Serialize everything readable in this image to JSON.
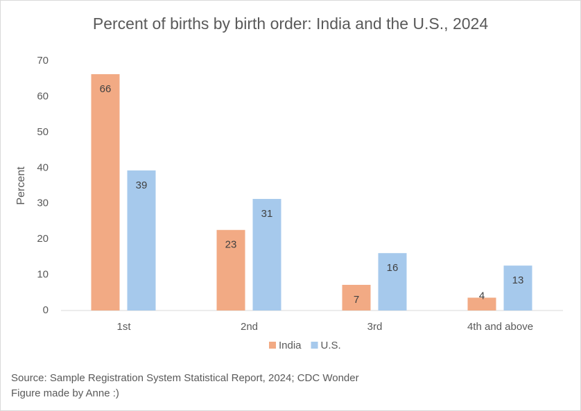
{
  "chart_data": {
    "type": "bar",
    "title": "Percent of births by birth order: India and the U.S., 2024",
    "y_label": "Percent",
    "categories": [
      "1st",
      "2nd",
      "3rd",
      "4th and above"
    ],
    "series": [
      {
        "name": "India",
        "color": "#f2aa84",
        "values": [
          66.3,
          22.6,
          7.2,
          3.6
        ],
        "value_labels": [
          "66",
          "23",
          "7",
          "4"
        ]
      },
      {
        "name": "U.S.",
        "color": "#a6c9ec",
        "values": [
          39.3,
          31.3,
          16.1,
          12.6
        ],
        "value_labels": [
          "39",
          "31",
          "16",
          "13"
        ]
      }
    ],
    "ylim": [
      0,
      70
    ],
    "yticks": [
      0,
      10,
      20,
      30,
      40,
      50,
      60,
      70
    ],
    "grid": false,
    "legend": "bottom",
    "source": "Source: Sample Registration System Statistical Report, 2024; CDC Wonder",
    "note": "Figure made by Anne :)"
  }
}
